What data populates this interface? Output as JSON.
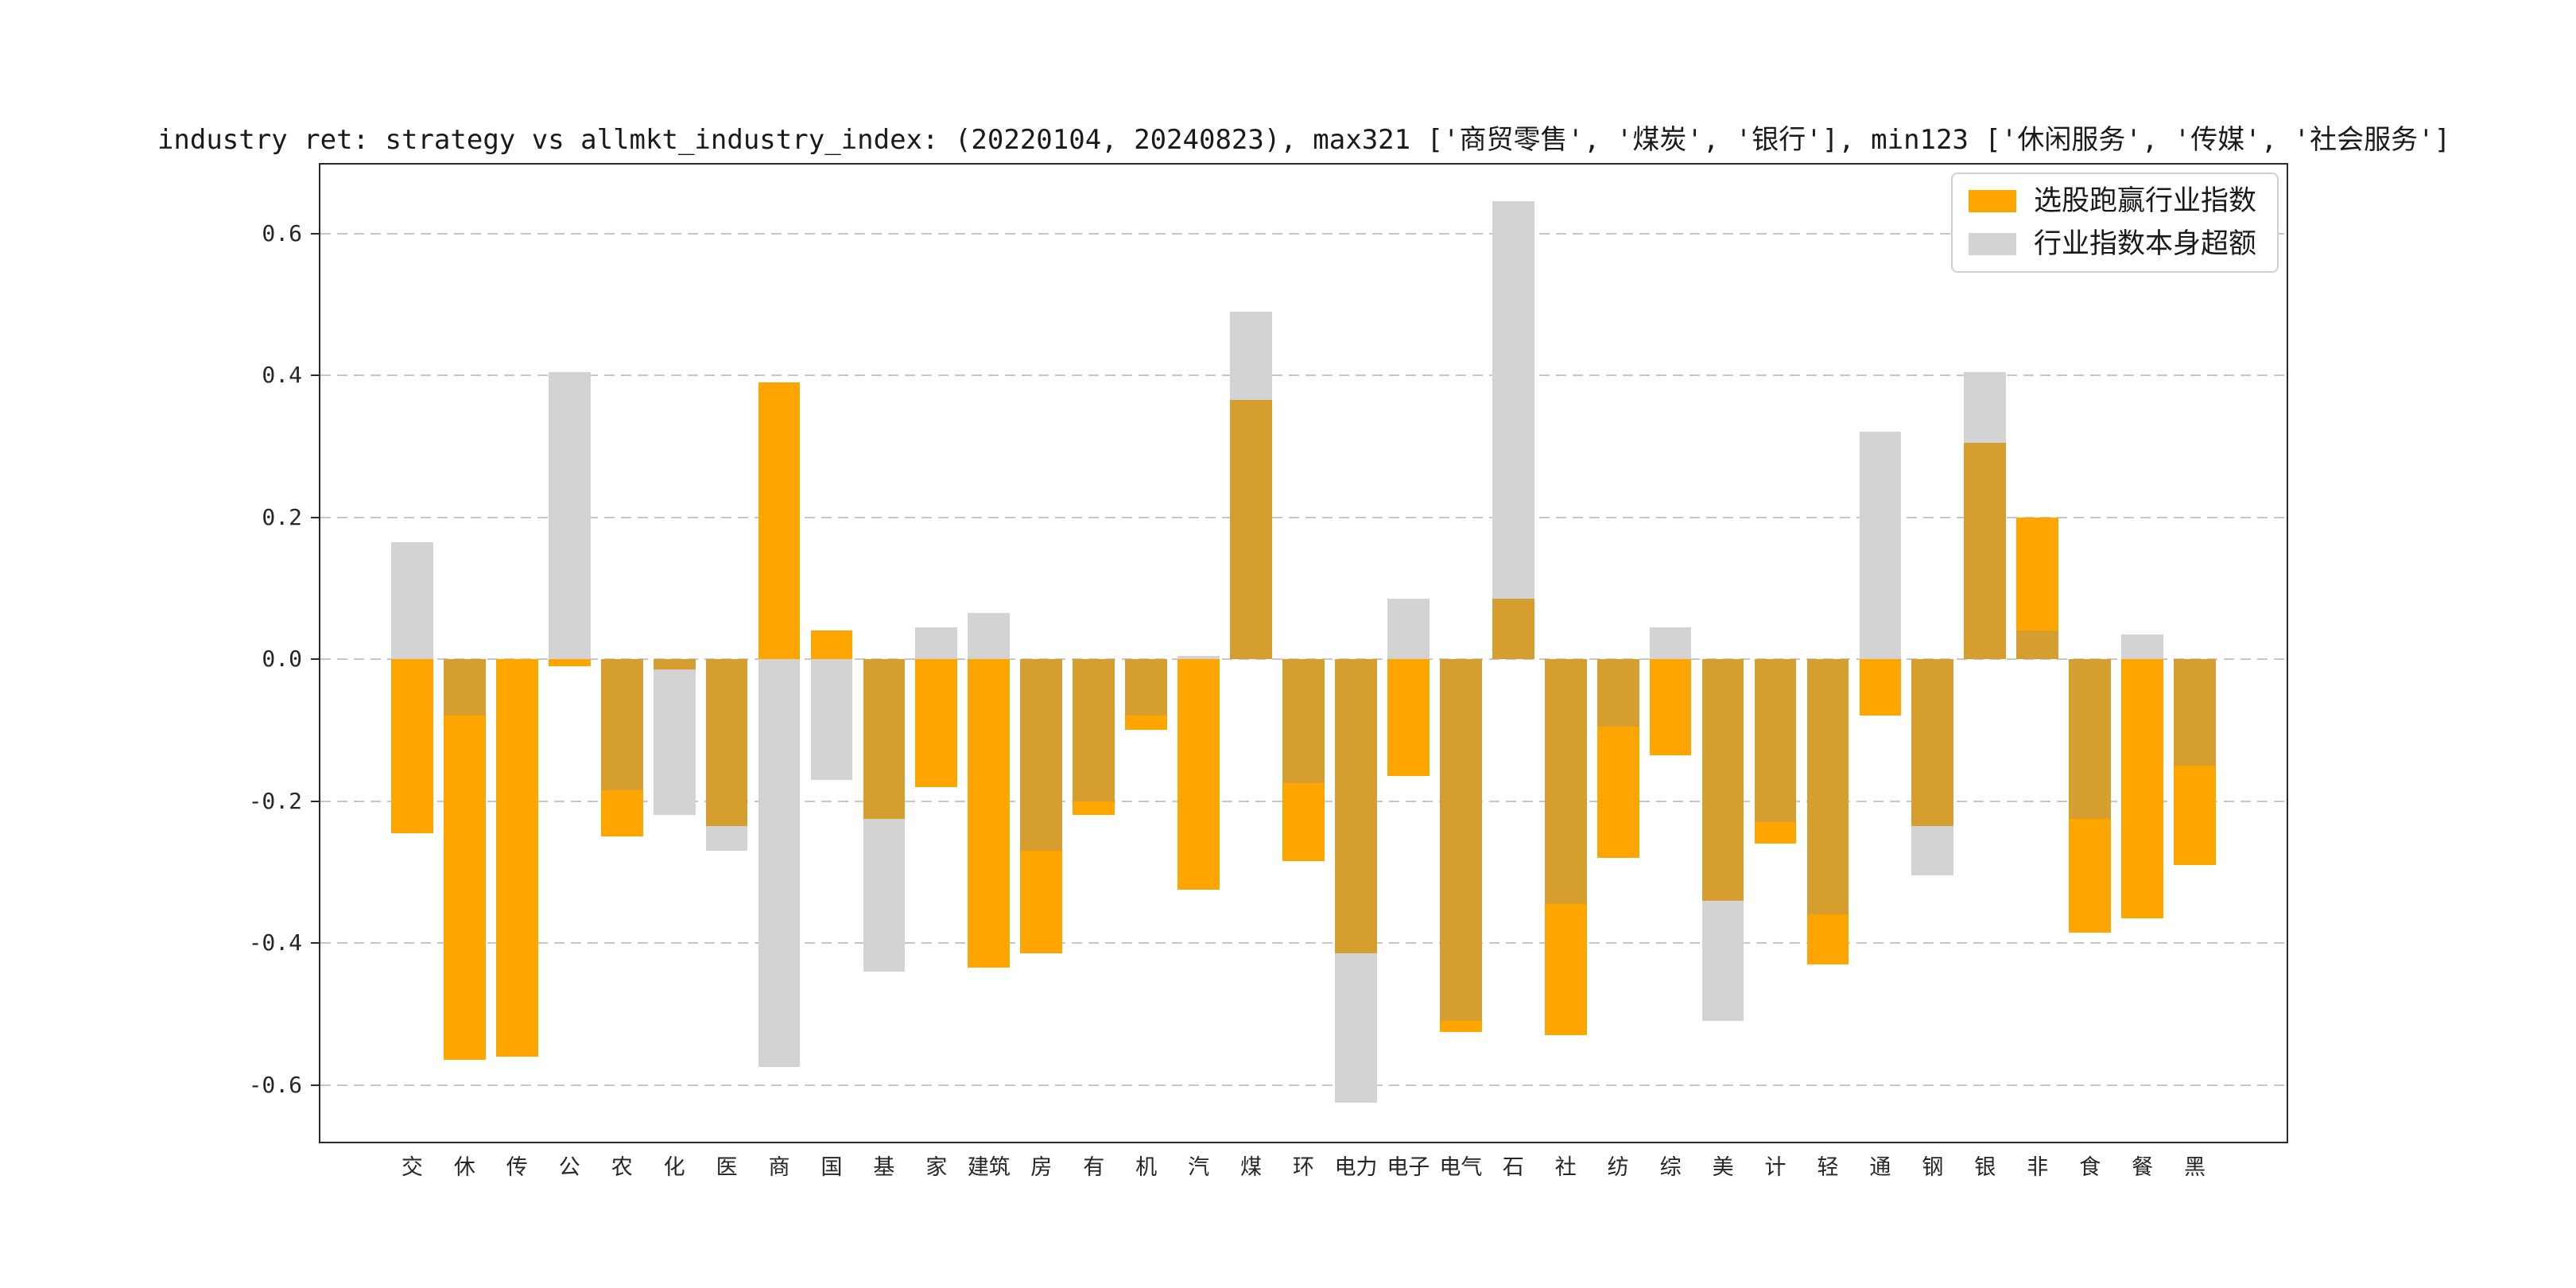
{
  "chart_data": {
    "type": "bar",
    "title": "industry ret: strategy vs allmkt_industry_index: (20220104, 20240823), max321 ['商贸零售', '煤炭', '银行'], min123 ['休闲服务', '传媒', '社会服务']",
    "categories": [
      "交",
      "休",
      "传",
      "公",
      "农",
      "化",
      "医",
      "商",
      "国",
      "基",
      "家",
      "建筑",
      "房",
      "有",
      "机",
      "汽",
      "煤",
      "环",
      "电力",
      "电子",
      "电气",
      "石",
      "社",
      "纺",
      "综",
      "美",
      "计",
      "轻",
      "通",
      "钢",
      "银",
      "非",
      "食",
      "餐",
      "黑"
    ],
    "series": [
      {
        "name": "选股跑赢行业指数",
        "color": "#FFA500",
        "values": [
          -0.245,
          -0.565,
          -0.56,
          -0.01,
          -0.25,
          -0.015,
          -0.235,
          0.39,
          0.04,
          -0.225,
          -0.18,
          -0.435,
          -0.415,
          -0.22,
          -0.1,
          -0.325,
          0.365,
          -0.285,
          -0.415,
          -0.165,
          -0.525,
          0.085,
          -0.53,
          -0.28,
          -0.135,
          -0.34,
          -0.26,
          -0.43,
          -0.08,
          -0.235,
          0.305,
          0.2,
          -0.385,
          -0.365,
          -0.29
        ]
      },
      {
        "name": "行业指数本身超额",
        "color": "#D3D3D3",
        "values": [
          0.165,
          -0.08,
          0.0,
          0.405,
          -0.185,
          -0.22,
          -0.27,
          -0.575,
          -0.17,
          -0.44,
          0.045,
          0.065,
          -0.27,
          -0.2,
          -0.08,
          0.005,
          0.49,
          -0.175,
          -0.625,
          0.085,
          -0.51,
          0.645,
          -0.345,
          -0.095,
          0.045,
          -0.51,
          -0.23,
          -0.36,
          0.32,
          -0.305,
          0.405,
          0.04,
          -0.225,
          0.035,
          -0.15
        ]
      }
    ],
    "yticks": [
      0.6,
      0.4,
      0.2,
      0.0,
      -0.2,
      -0.4,
      -0.6
    ],
    "ylim": [
      -0.68,
      0.697
    ],
    "xlabel": "",
    "ylabel": "",
    "grid": "horizontal-dashed",
    "legend_position": "upper-right"
  },
  "legend": {
    "items": [
      {
        "label": "选股跑赢行业指数",
        "color": "#FFA500"
      },
      {
        "label": "行业指数本身超额",
        "color": "#D3D3D3"
      }
    ]
  },
  "colors": {
    "strategy": "#FFA500",
    "index": "#D3D3D3",
    "overlap": "#D59E2E",
    "grid": "#c7c7c7",
    "spine": "#2a2a2a",
    "text": "#1a1a1a"
  }
}
